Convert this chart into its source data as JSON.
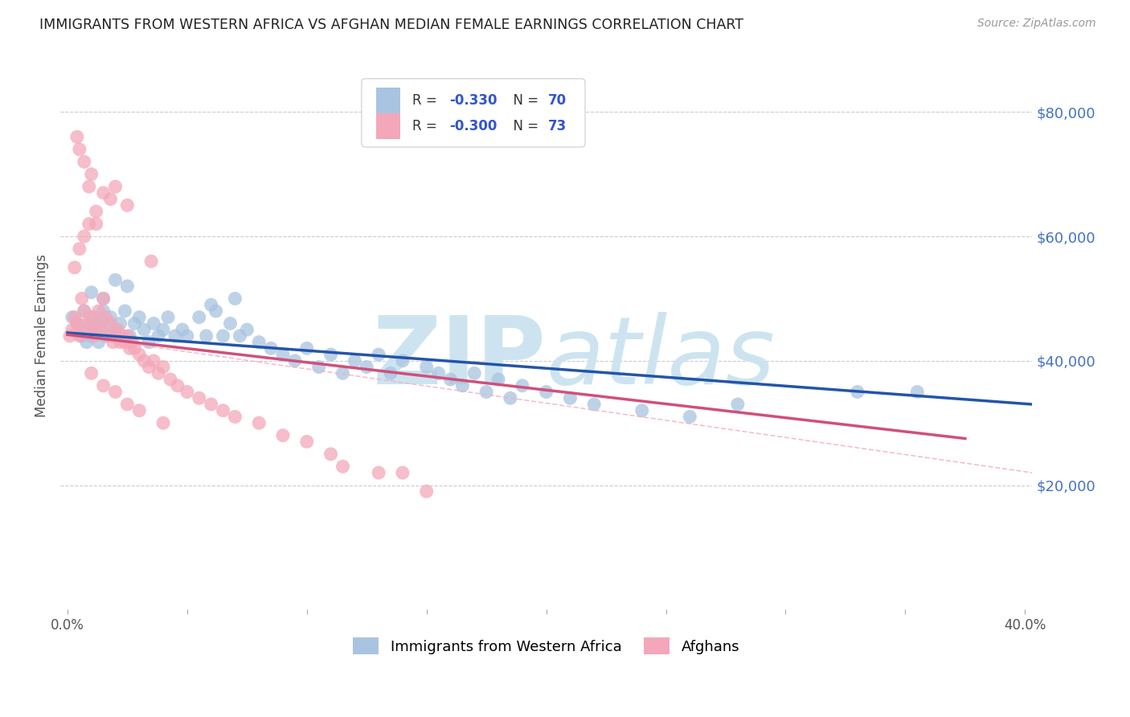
{
  "title": "IMMIGRANTS FROM WESTERN AFRICA VS AFGHAN MEDIAN FEMALE EARNINGS CORRELATION CHART",
  "source": "Source: ZipAtlas.com",
  "ylabel": "Median Female Earnings",
  "xlim": [
    -0.003,
    0.403
  ],
  "ylim": [
    0,
    88000
  ],
  "xticks": [
    0.0,
    0.05,
    0.1,
    0.15,
    0.2,
    0.25,
    0.3,
    0.35,
    0.4
  ],
  "xticklabels": [
    "0.0%",
    "",
    "",
    "",
    "",
    "",
    "",
    "",
    "40.0%"
  ],
  "yticks_right": [
    20000,
    40000,
    60000,
    80000
  ],
  "ytick_labels_right": [
    "$20,000",
    "$40,000",
    "$60,000",
    "$80,000"
  ],
  "color_blue": "#a8c4e0",
  "color_pink": "#f4a7b9",
  "color_trendline_blue": "#2255aa",
  "color_trendline_pink": "#d0507a",
  "color_dashed": "#f0b0c0",
  "watermark": "ZIPatlas",
  "watermark_color": "#cde4f0",
  "blue_trendline": [
    0.0,
    0.403,
    44500,
    33000
  ],
  "pink_trendline_solid": [
    0.0,
    0.375,
    44200,
    27500
  ],
  "pink_trendline_dashed": [
    0.0,
    0.403,
    44200,
    22000
  ],
  "blue_scatter_x": [
    0.002,
    0.004,
    0.005,
    0.006,
    0.007,
    0.008,
    0.009,
    0.01,
    0.011,
    0.012,
    0.013,
    0.014,
    0.015,
    0.016,
    0.017,
    0.018,
    0.019,
    0.02,
    0.022,
    0.024,
    0.026,
    0.028,
    0.03,
    0.032,
    0.034,
    0.036,
    0.038,
    0.04,
    0.042,
    0.045,
    0.048,
    0.05,
    0.055,
    0.058,
    0.062,
    0.065,
    0.068,
    0.072,
    0.075,
    0.08,
    0.085,
    0.09,
    0.095,
    0.1,
    0.105,
    0.11,
    0.115,
    0.12,
    0.125,
    0.13,
    0.135,
    0.14,
    0.15,
    0.155,
    0.16,
    0.165,
    0.17,
    0.175,
    0.18,
    0.185,
    0.19,
    0.2,
    0.21,
    0.22,
    0.24,
    0.26,
    0.28,
    0.33,
    0.355,
    0.01,
    0.015,
    0.02,
    0.025,
    0.06,
    0.07
  ],
  "blue_scatter_y": [
    47000,
    46000,
    45000,
    44000,
    48000,
    43000,
    46000,
    44000,
    47000,
    45000,
    43000,
    46000,
    48000,
    44000,
    46000,
    47000,
    44000,
    45000,
    46000,
    48000,
    44000,
    46000,
    47000,
    45000,
    43000,
    46000,
    44000,
    45000,
    47000,
    44000,
    45000,
    44000,
    47000,
    44000,
    48000,
    44000,
    46000,
    44000,
    45000,
    43000,
    42000,
    41000,
    40000,
    42000,
    39000,
    41000,
    38000,
    40000,
    39000,
    41000,
    38000,
    40000,
    39000,
    38000,
    37000,
    36000,
    38000,
    35000,
    37000,
    34000,
    36000,
    35000,
    34000,
    33000,
    32000,
    31000,
    33000,
    35000,
    35000,
    51000,
    50000,
    53000,
    52000,
    49000,
    50000
  ],
  "pink_scatter_x": [
    0.001,
    0.002,
    0.003,
    0.004,
    0.005,
    0.006,
    0.007,
    0.008,
    0.009,
    0.01,
    0.011,
    0.012,
    0.013,
    0.014,
    0.015,
    0.016,
    0.017,
    0.018,
    0.019,
    0.02,
    0.021,
    0.022,
    0.023,
    0.024,
    0.025,
    0.026,
    0.027,
    0.028,
    0.03,
    0.032,
    0.034,
    0.036,
    0.038,
    0.04,
    0.043,
    0.046,
    0.05,
    0.055,
    0.06,
    0.065,
    0.07,
    0.08,
    0.09,
    0.1,
    0.11,
    0.13,
    0.15,
    0.003,
    0.005,
    0.007,
    0.009,
    0.012,
    0.015,
    0.02,
    0.025,
    0.035,
    0.01,
    0.015,
    0.02,
    0.025,
    0.03,
    0.04,
    0.115,
    0.14,
    0.01,
    0.018,
    0.007,
    0.009,
    0.012,
    0.005,
    0.004
  ],
  "pink_scatter_y": [
    44000,
    45000,
    47000,
    46000,
    44000,
    50000,
    48000,
    46000,
    45000,
    47000,
    44000,
    46000,
    48000,
    45000,
    50000,
    47000,
    44000,
    46000,
    43000,
    44000,
    45000,
    43000,
    44000,
    43000,
    44000,
    42000,
    43000,
    42000,
    41000,
    40000,
    39000,
    40000,
    38000,
    39000,
    37000,
    36000,
    35000,
    34000,
    33000,
    32000,
    31000,
    30000,
    28000,
    27000,
    25000,
    22000,
    19000,
    55000,
    58000,
    60000,
    62000,
    64000,
    67000,
    68000,
    65000,
    56000,
    38000,
    36000,
    35000,
    33000,
    32000,
    30000,
    23000,
    22000,
    70000,
    66000,
    72000,
    68000,
    62000,
    74000,
    76000
  ]
}
